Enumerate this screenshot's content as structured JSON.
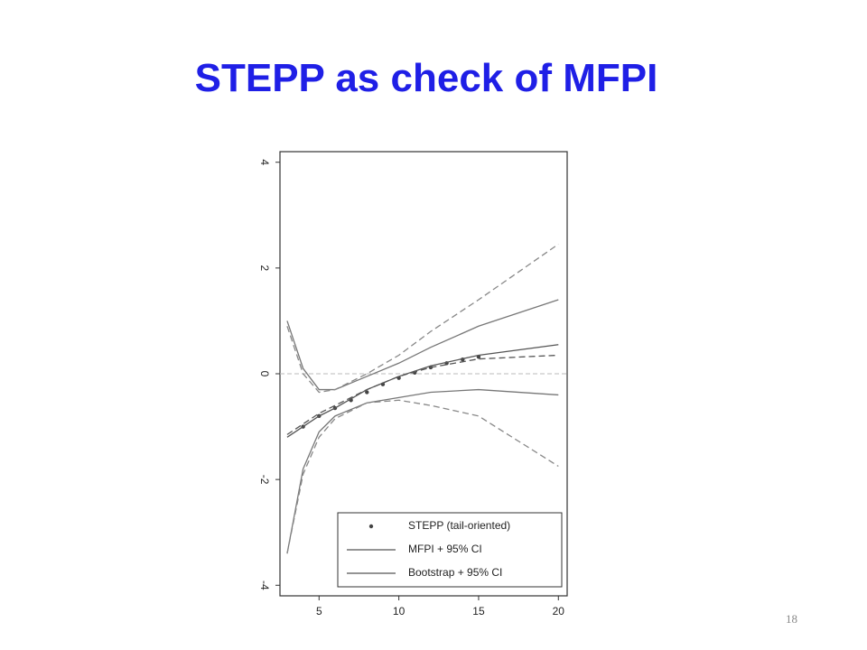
{
  "slide_title": "STEPP as check of MFPI",
  "slide_number": "18",
  "chart_data": {
    "type": "line",
    "xlim": [
      2.55,
      20.55
    ],
    "ylim": [
      -4.2,
      4.2
    ],
    "xticks": [
      5,
      10,
      15,
      20
    ],
    "yticks": [
      4,
      2,
      0,
      -2,
      -4
    ],
    "reference_line": 0,
    "legend": "lower right",
    "series": [
      {
        "name": "STEPP (tail-oriented)",
        "style": "points",
        "color": "#444444",
        "x": [
          4,
          5,
          6,
          7,
          8,
          9,
          10,
          11,
          12,
          13,
          14,
          15
        ],
        "values": [
          -1.0,
          -0.8,
          -0.65,
          -0.5,
          -0.35,
          -0.2,
          -0.08,
          0.02,
          0.12,
          0.2,
          0.27,
          0.32
        ]
      },
      {
        "name": "MFPI + 95% CI",
        "style": "solid",
        "color": "#555555",
        "x": [
          3,
          4,
          5,
          6,
          8,
          10,
          12,
          15,
          20
        ],
        "values": [
          -1.2,
          -1.0,
          -0.8,
          -0.65,
          -0.3,
          -0.05,
          0.15,
          0.35,
          0.55
        ]
      },
      {
        "style": "solid",
        "color": "#777777",
        "x": [
          3,
          4,
          5,
          6,
          8,
          10,
          12,
          15,
          20
        ],
        "values": [
          1.0,
          0.1,
          -0.3,
          -0.3,
          -0.05,
          0.2,
          0.5,
          0.9,
          1.4
        ]
      },
      {
        "style": "solid",
        "color": "#777777",
        "x": [
          3,
          4,
          5,
          6,
          8,
          10,
          12,
          15,
          20
        ],
        "values": [
          -3.4,
          -1.8,
          -1.1,
          -0.8,
          -0.55,
          -0.45,
          -0.35,
          -0.3,
          -0.4
        ]
      },
      {
        "name": "Bootstrap + 95% CI",
        "style": "dashed",
        "color": "#555555",
        "x": [
          3,
          4,
          5,
          6,
          8,
          10,
          12,
          15,
          20
        ],
        "values": [
          -1.15,
          -0.95,
          -0.75,
          -0.6,
          -0.3,
          -0.05,
          0.12,
          0.28,
          0.35
        ]
      },
      {
        "style": "dashed",
        "color": "#888888",
        "x": [
          3,
          4,
          5,
          6,
          8,
          10,
          12,
          15,
          20
        ],
        "values": [
          0.9,
          0.0,
          -0.35,
          -0.3,
          0.0,
          0.35,
          0.8,
          1.4,
          2.45
        ]
      },
      {
        "style": "dashed",
        "color": "#888888",
        "x": [
          3,
          4,
          5,
          6,
          8,
          10,
          12,
          15,
          20
        ],
        "values": [
          -3.4,
          -1.9,
          -1.2,
          -0.85,
          -0.55,
          -0.5,
          -0.6,
          -0.8,
          -1.75
        ]
      }
    ]
  }
}
